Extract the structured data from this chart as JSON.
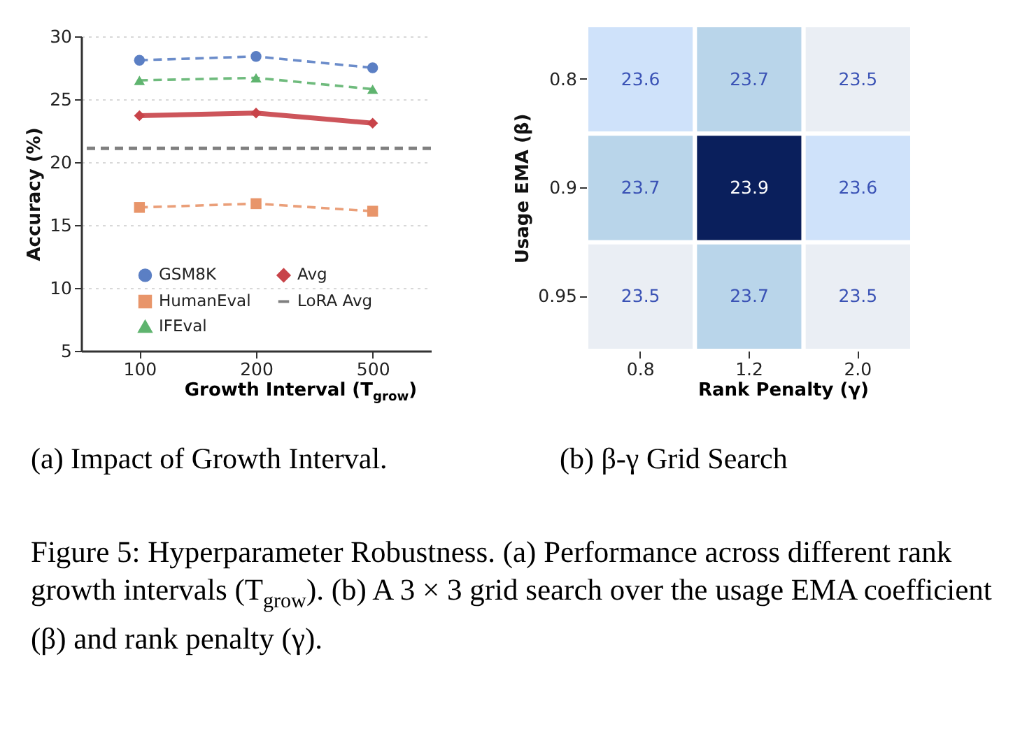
{
  "chart_data": [
    {
      "type": "line",
      "xlabel": "Growth Interval (T$_{grow}$)",
      "ylabel": "Accuracy (%)",
      "categories": [
        "100",
        "200",
        "500"
      ],
      "ylim": [
        5,
        30
      ],
      "yticks": [
        5,
        10,
        15,
        20,
        25,
        30
      ],
      "grid": "y",
      "legend": "bottom",
      "series": [
        {
          "name": "GSM8K",
          "color": "#5b7fc4",
          "values": [
            28.1,
            28.4,
            27.5
          ],
          "marker": "circle",
          "line_style": "dashed"
        },
        {
          "name": "HumanEval",
          "color": "#e8956a",
          "values": [
            16.4,
            16.7,
            16.1
          ],
          "marker": "square",
          "line_style": "dashed"
        },
        {
          "name": "IFEval",
          "color": "#5fb46f",
          "values": [
            26.5,
            26.7,
            25.8
          ],
          "marker": "triangle",
          "line_style": "dashed"
        },
        {
          "name": "Avg",
          "color": "#c84349",
          "values": [
            23.7,
            23.9,
            23.1
          ],
          "marker": "diamond",
          "line_style": "solid"
        }
      ],
      "ref_lines": [
        {
          "axis": "y",
          "value": 21.1,
          "label": "LoRA Avg",
          "color": "#808080",
          "line_style": "dashed"
        }
      ],
      "annotations": [
        "(a) Impact of Growth Interval."
      ]
    },
    {
      "type": "heatmap",
      "xlabel": "Rank Penalty (γ)",
      "ylabel": "Usage EMA (β)",
      "categories": [
        "0.8",
        "1.2",
        "2.0"
      ],
      "y_categories": [
        "0.8",
        "0.9",
        "0.95"
      ],
      "cells": [
        [
          23.6,
          23.7,
          23.5
        ],
        [
          23.7,
          23.9,
          23.6
        ],
        [
          23.5,
          23.7,
          23.5
        ]
      ],
      "data_labels": true,
      "annotations": [
        "(b) β-γ Grid Search",
        "Figure 5: Hyperparameter Robustness. (a) Performance across different rank growth intervals (T$_{grow}$). (b) A 3 × 3 grid search over the usage EMA coefficient (β) and rank penalty (γ)."
      ]
    }
  ]
}
